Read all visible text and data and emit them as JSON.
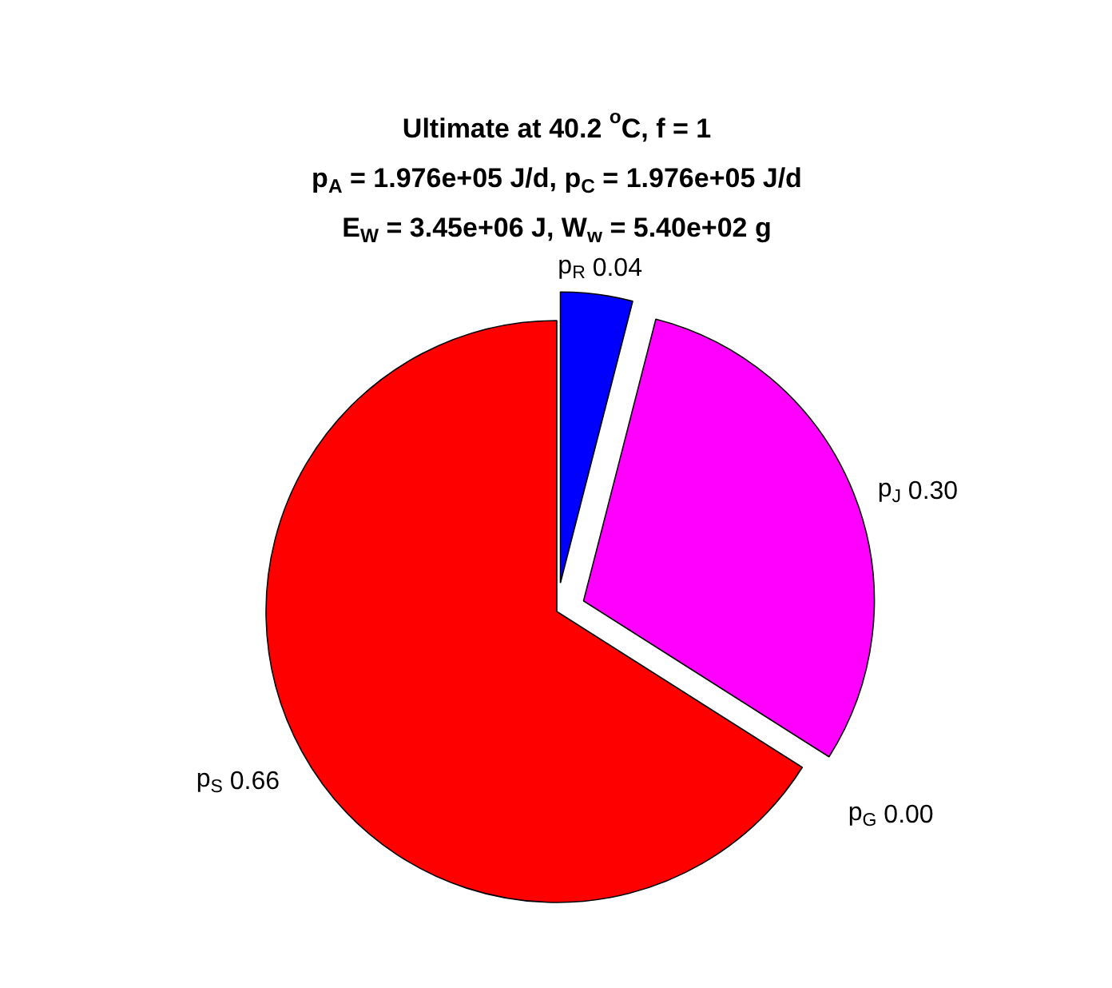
{
  "chart_data": {
    "type": "pie",
    "title": "Ultimate at 40.2 $^{o}$C, f = 1",
    "subtitle": "p$_{A}$ = 1.976e+05 J/d, p$_{C}$ = 1.976e+05 J/d\nE$_{W}$ = 3.45e+06 J, W$_{w}$ = 5.40e+02 g",
    "categories": [
      "p$_{R}$",
      "p$_{J}$",
      "p$_{G}$",
      "p$_{S}$"
    ],
    "values": [
      0.04,
      0.3,
      0.0,
      0.66
    ],
    "colors": [
      "#0000ff",
      "#ff00ff",
      "#ffffff",
      "#ff0000"
    ],
    "value_labels": [
      "0.04",
      "0.30",
      "0.00",
      "0.66"
    ]
  }
}
